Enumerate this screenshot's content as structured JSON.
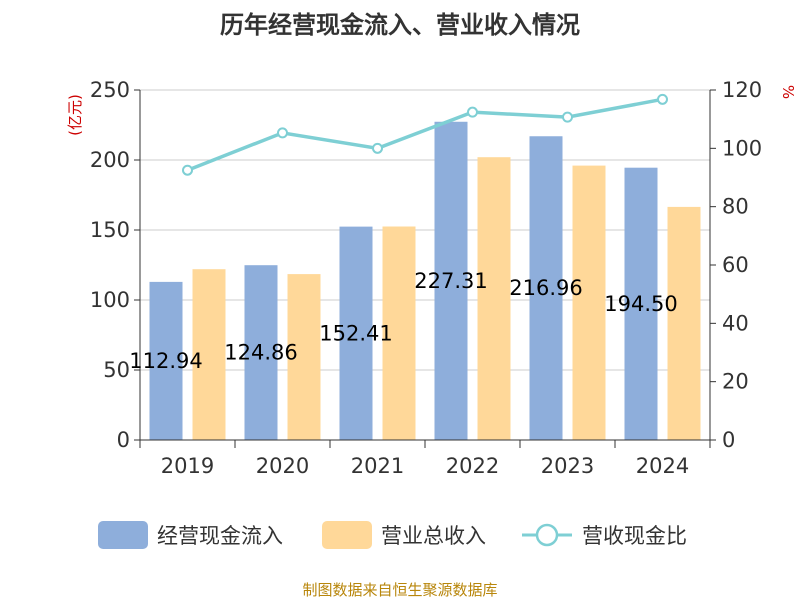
{
  "chart_data": {
    "type": "bar",
    "title": "历年经营现金流入、营业收入情况",
    "categories": [
      "2019",
      "2020",
      "2021",
      "2022",
      "2023",
      "2024"
    ],
    "series": [
      {
        "name": "经营现金流入",
        "kind": "bar",
        "axis": "left",
        "color": "#8eaedb",
        "values": [
          112.94,
          124.86,
          152.41,
          227.31,
          216.96,
          194.5
        ]
      },
      {
        "name": "营业总收入",
        "kind": "bar",
        "axis": "left",
        "color": "#ffd899",
        "values": [
          122.0,
          118.5,
          152.5,
          202.0,
          196.0,
          166.5
        ]
      },
      {
        "name": "营收现金比",
        "kind": "line",
        "axis": "right",
        "color": "#7ecfd4",
        "values": [
          92.5,
          105.3,
          100.0,
          112.4,
          110.7,
          116.8
        ]
      }
    ],
    "data_labels": [
      "112.94",
      "124.86",
      "152.41",
      "227.31",
      "216.96",
      "194.50"
    ],
    "y_left": {
      "unit": "(亿元)",
      "min": 0,
      "max": 250,
      "ticks": [
        0,
        50,
        100,
        150,
        200,
        250
      ]
    },
    "y_right": {
      "unit": "%",
      "min": 0,
      "max": 120,
      "ticks": [
        0,
        20,
        40,
        60,
        80,
        100,
        120
      ]
    },
    "grid": true,
    "legend_position": "bottom"
  },
  "source": "制图数据来自恒生聚源数据库"
}
